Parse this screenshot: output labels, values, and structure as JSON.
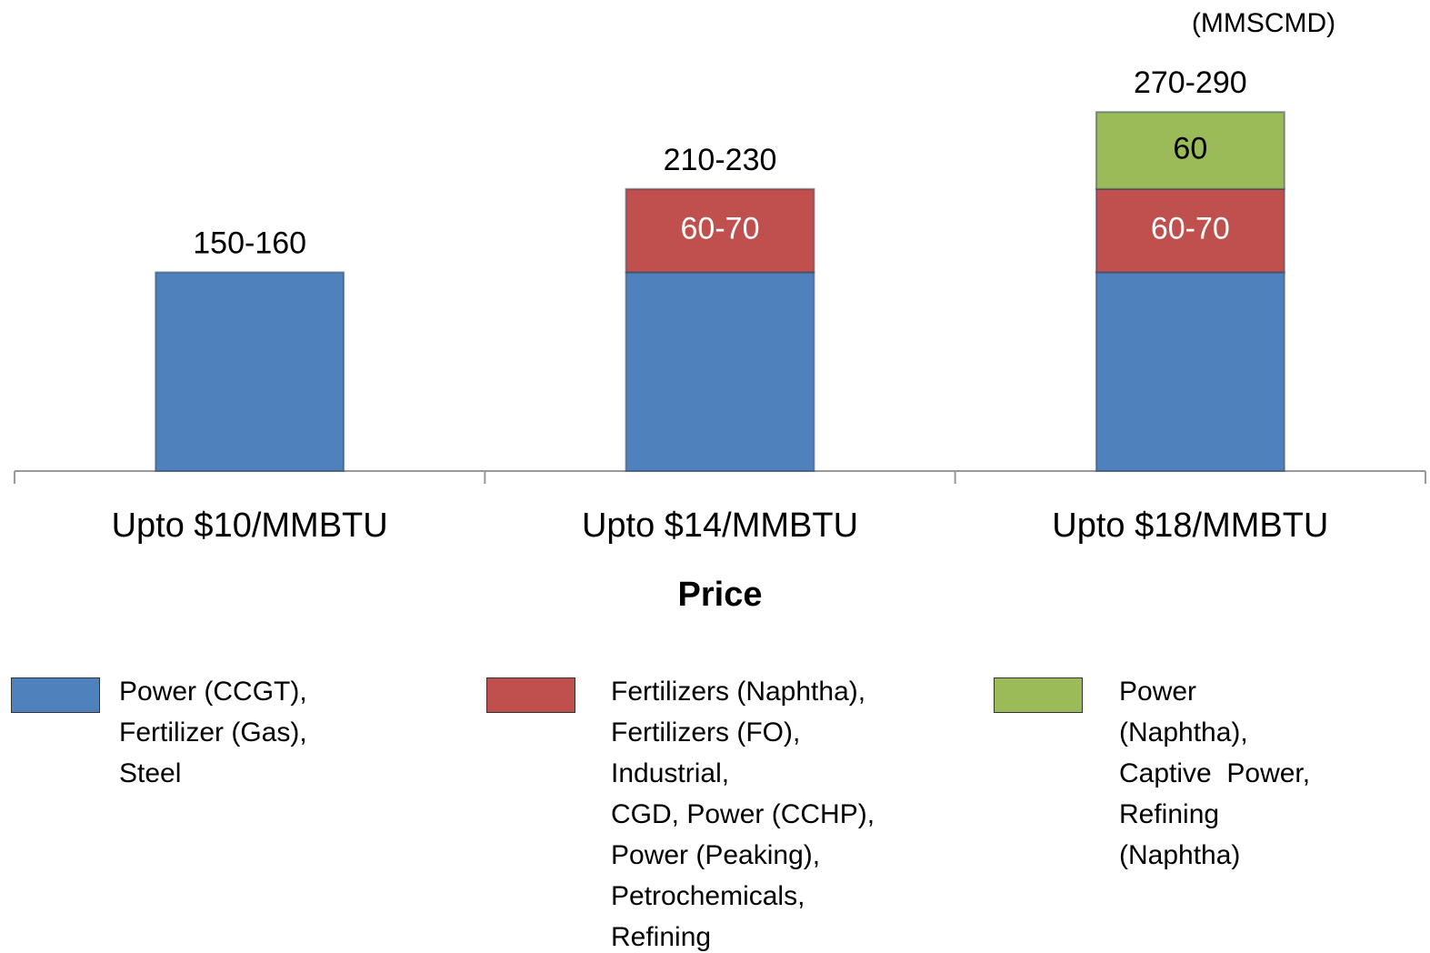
{
  "chart_data": {
    "type": "stacked_bar",
    "unit_label": "(MMSCMD)",
    "x_label": "Price",
    "categories": [
      "Upto $10/MMBTU",
      "Upto $14/MMBTU",
      "Upto $18/MMBTU"
    ],
    "series": [
      {
        "name": "Power (CCGT),\nFertilizer (Gas),\nSteel",
        "color": "#4f81bd",
        "values": [
          155,
          155,
          155
        ]
      },
      {
        "name": "Fertilizers (Naphtha),\nFertilizers (FO),\nIndustrial,\nCGD, Power (CCHP),\nPower (Peaking),\nPetrochemicals,\nRefining",
        "color": "#c0504d",
        "values": [
          null,
          65,
          65
        ],
        "value_labels": [
          null,
          "60-70",
          "60-70"
        ]
      },
      {
        "name": "Power\n(Naphtha),\nCaptive  Power,\nRefining\n(Naphtha)",
        "color": "#9bbb59",
        "values": [
          null,
          null,
          60
        ]
      }
    ],
    "totals": [
      155,
      220,
      280
    ],
    "total_labels": [
      "150-160",
      "210-230",
      "270-290"
    ],
    "ylim": [
      0,
      300
    ]
  }
}
